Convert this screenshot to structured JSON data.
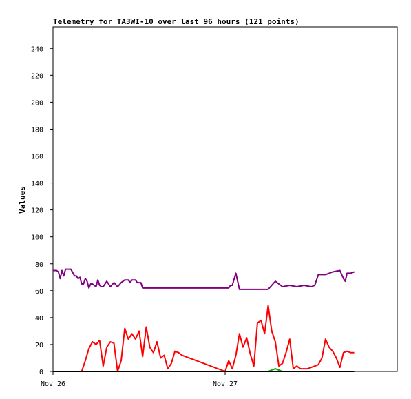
{
  "chart_data": {
    "type": "line",
    "title": "Telemetry for TA3WI-10 over last 96 hours (121 points)",
    "ylabel": "Values",
    "xlabel": "",
    "ylim": [
      0,
      256
    ],
    "xlim": [
      0,
      96
    ],
    "x_unit": "hours since Nov 26 00:00",
    "yticks": [
      0,
      20,
      40,
      60,
      80,
      100,
      120,
      140,
      160,
      180,
      200,
      220,
      240
    ],
    "xticks": [
      {
        "label": "Nov 26",
        "x": 0
      },
      {
        "label": "Nov 27",
        "x": 48
      }
    ],
    "grid": false,
    "legend": "none",
    "series": [
      {
        "color": "#800080",
        "x": [
          0,
          1,
          1.5,
          2,
          2.5,
          3,
          3.5,
          4,
          5,
          6,
          6.5,
          7,
          7.5,
          8,
          8.5,
          9,
          9.5,
          10,
          10.5,
          11,
          12,
          12.5,
          13,
          13.5,
          14,
          15,
          16,
          17,
          18,
          19,
          20,
          21,
          21.5,
          22,
          22.5,
          23,
          23.5,
          24,
          24.5,
          25,
          26,
          27,
          35,
          46,
          48,
          49,
          49.5,
          50,
          51,
          52,
          54,
          55,
          56,
          57,
          58,
          60,
          62,
          64,
          66,
          68,
          70,
          72,
          73,
          74,
          75,
          75.5,
          76,
          78,
          80,
          81,
          81.5,
          82,
          83,
          84
        ],
        "y": [
          75,
          75,
          74,
          69,
          75,
          71,
          76,
          76,
          76,
          71,
          71,
          69,
          70,
          65,
          65,
          69,
          67,
          62,
          65,
          65,
          63,
          68,
          64,
          63,
          63,
          67,
          63,
          66,
          63,
          66,
          68,
          68,
          66,
          68,
          68,
          68,
          66,
          66,
          66,
          62,
          62,
          62,
          62,
          62,
          62,
          62,
          64,
          64,
          73,
          61,
          61,
          61,
          61,
          61,
          61,
          61,
          67,
          63,
          64,
          63,
          64,
          63,
          64,
          72,
          72,
          72,
          72,
          74,
          75,
          69,
          67,
          73,
          73,
          74
        ]
      },
      {
        "color": "#ff0000",
        "x": [
          0,
          8,
          9,
          10,
          11,
          12,
          13,
          14,
          15,
          16,
          17,
          18,
          19,
          20,
          21,
          22,
          23,
          24,
          25,
          26,
          27,
          28,
          29,
          30,
          31,
          32,
          33,
          34,
          35,
          36,
          48,
          49,
          50,
          51,
          52,
          53,
          54,
          55,
          56,
          57,
          58,
          59,
          60,
          61,
          62,
          63,
          64,
          65,
          66,
          67,
          68,
          69,
          70,
          71,
          72,
          73,
          74,
          75,
          76,
          77,
          78,
          79,
          80,
          81,
          82,
          83,
          84
        ],
        "y": [
          0,
          0,
          8,
          17,
          22,
          20,
          23,
          4,
          18,
          22,
          21,
          0,
          8,
          32,
          24,
          28,
          24,
          30,
          11,
          33,
          18,
          14,
          22,
          10,
          12,
          2,
          6,
          15,
          14,
          12,
          0,
          8,
          2,
          12,
          28,
          18,
          25,
          13,
          4,
          36,
          38,
          28,
          49,
          30,
          22,
          4,
          6,
          14,
          24,
          2,
          4,
          2,
          2,
          2,
          3,
          4,
          5,
          10,
          24,
          18,
          15,
          10,
          3,
          14,
          15,
          14,
          14
        ]
      },
      {
        "color": "#00aa00",
        "x": [
          0,
          60,
          61,
          62,
          63,
          64,
          84
        ],
        "y": [
          0,
          0,
          1,
          2,
          1,
          0,
          0
        ]
      },
      {
        "color": "#000000",
        "x": [
          0,
          84
        ],
        "y": [
          0,
          0
        ]
      }
    ]
  }
}
